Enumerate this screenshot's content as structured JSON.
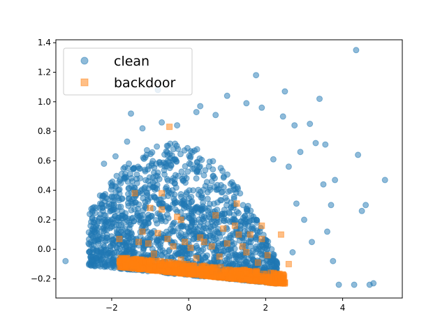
{
  "chart_data": {
    "type": "scatter",
    "xlim": [
      -3.45,
      5.55
    ],
    "ylim": [
      -0.33,
      1.42
    ],
    "x_ticks": [
      -2,
      0,
      2,
      4
    ],
    "y_ticks": [
      -0.2,
      0.0,
      0.2,
      0.4,
      0.6,
      0.8,
      1.0,
      1.2,
      1.4
    ],
    "x_tick_labels": [
      "−2",
      "0",
      "2",
      "4"
    ],
    "y_tick_labels": [
      "−0.2",
      "0.0",
      "0.2",
      "0.4",
      "0.6",
      "0.8",
      "1.0",
      "1.2",
      "1.4"
    ],
    "grid": false,
    "legend_position": "top-left",
    "series": [
      {
        "name": "clean",
        "marker": "circle",
        "color": "#1f77b4",
        "alpha": 0.5,
        "points": [
          [
            -3.2,
            -0.08
          ],
          [
            4.35,
            1.35
          ],
          [
            1.75,
            1.18
          ],
          [
            -0.8,
            1.08
          ],
          [
            2.5,
            1.07
          ],
          [
            1.0,
            1.04
          ],
          [
            3.4,
            1.02
          ],
          [
            1.5,
            0.99
          ],
          [
            1.9,
            0.96
          ],
          [
            0.3,
            0.97
          ],
          [
            -1.5,
            0.92
          ],
          [
            0.2,
            0.93
          ],
          [
            0.7,
            0.91
          ],
          [
            2.45,
            0.9
          ],
          [
            3.15,
            0.85
          ],
          [
            2.75,
            0.84
          ],
          [
            5.1,
            0.47
          ],
          [
            4.6,
            0.3
          ],
          [
            4.4,
            0.64
          ],
          [
            4.5,
            0.26
          ],
          [
            3.7,
            0.3
          ],
          [
            4.8,
            -0.23
          ],
          [
            4.7,
            -0.24
          ],
          [
            4.3,
            -0.24
          ],
          [
            3.9,
            -0.24
          ],
          [
            -2.6,
            0.04
          ],
          [
            -2.2,
            0.58
          ],
          [
            -1.9,
            0.63
          ],
          [
            -1.6,
            0.73
          ],
          [
            -1.2,
            0.82
          ],
          [
            -0.7,
            0.86
          ],
          [
            -0.3,
            0.84
          ],
          [
            3.55,
            0.71
          ],
          [
            3.3,
            0.72
          ],
          [
            2.9,
            0.66
          ],
          [
            2.2,
            0.61
          ],
          [
            2.6,
            0.56
          ],
          [
            3.8,
            0.47
          ],
          [
            3.5,
            0.44
          ],
          [
            3.0,
            0.2
          ],
          [
            2.8,
            0.31
          ],
          [
            3.6,
            0.12
          ],
          [
            3.2,
            0.05
          ],
          [
            2.7,
            -0.02
          ],
          [
            3.75,
            -0.08
          ],
          [
            -2.3,
            0.31
          ],
          [
            -2.1,
            0.2
          ],
          [
            -2.45,
            0.18
          ],
          [
            -2.2,
            -0.02
          ],
          [
            -1.8,
            0.46
          ]
        ],
        "cluster": {
          "x_range": [
            -2.6,
            2.3
          ],
          "y_floor_at_x_min": -0.11,
          "y_floor_slope_per_unit_x": -0.025,
          "y_peak_at_x": -0.4,
          "y_peak": 0.72,
          "density_note": "dense mass of points concentrated between y = -0.22 and y = 0.6"
        }
      },
      {
        "name": "backdoor",
        "marker": "square",
        "color": "#ff7f0e",
        "alpha": 0.5,
        "points": [
          [
            -0.5,
            0.83
          ],
          [
            1.25,
            0.31
          ],
          [
            -1.4,
            0.38
          ],
          [
            -0.7,
            0.38
          ],
          [
            -1.0,
            0.28
          ],
          [
            -0.7,
            0.27
          ],
          [
            -0.3,
            0.22
          ],
          [
            -0.2,
            0.2
          ],
          [
            0.7,
            0.23
          ],
          [
            1.2,
            0.16
          ],
          [
            1.9,
            0.16
          ],
          [
            0.9,
            0.14
          ],
          [
            -1.2,
            0.12
          ],
          [
            -0.8,
            0.11
          ],
          [
            -0.55,
            0.07
          ],
          [
            1.3,
            0.1
          ],
          [
            1.6,
            0.1
          ],
          [
            2.4,
            0.1
          ],
          [
            1.9,
            0.07
          ],
          [
            0.3,
            0.08
          ],
          [
            0.4,
            0.05
          ],
          [
            -0.1,
            0.05
          ],
          [
            -1.3,
            0.05
          ],
          [
            -1.05,
            0.04
          ],
          [
            -1.8,
            0.07
          ],
          [
            0.6,
            0.02
          ],
          [
            1.0,
            0.04
          ],
          [
            1.4,
            0.02
          ],
          [
            -0.4,
            0.02
          ],
          [
            0.05,
            0.01
          ],
          [
            1.5,
            -0.02
          ],
          [
            2.05,
            -0.04
          ],
          [
            -0.9,
            -0.03
          ],
          [
            -1.6,
            -0.06
          ],
          [
            2.6,
            -0.1
          ],
          [
            1.8,
            -0.09
          ],
          [
            0.2,
            -0.06
          ],
          [
            0.8,
            -0.05
          ],
          [
            -0.2,
            -0.07
          ],
          [
            -1.4,
            -0.1
          ]
        ],
        "cluster": {
          "x_range": [
            -1.8,
            2.5
          ],
          "y_floor_at_x_min": -0.12,
          "y_floor_slope_per_unit_x": -0.027,
          "band_height": 0.07,
          "density_note": "dense band hugging the lower edge between x = -1.8 and x = 2.5"
        }
      }
    ]
  }
}
